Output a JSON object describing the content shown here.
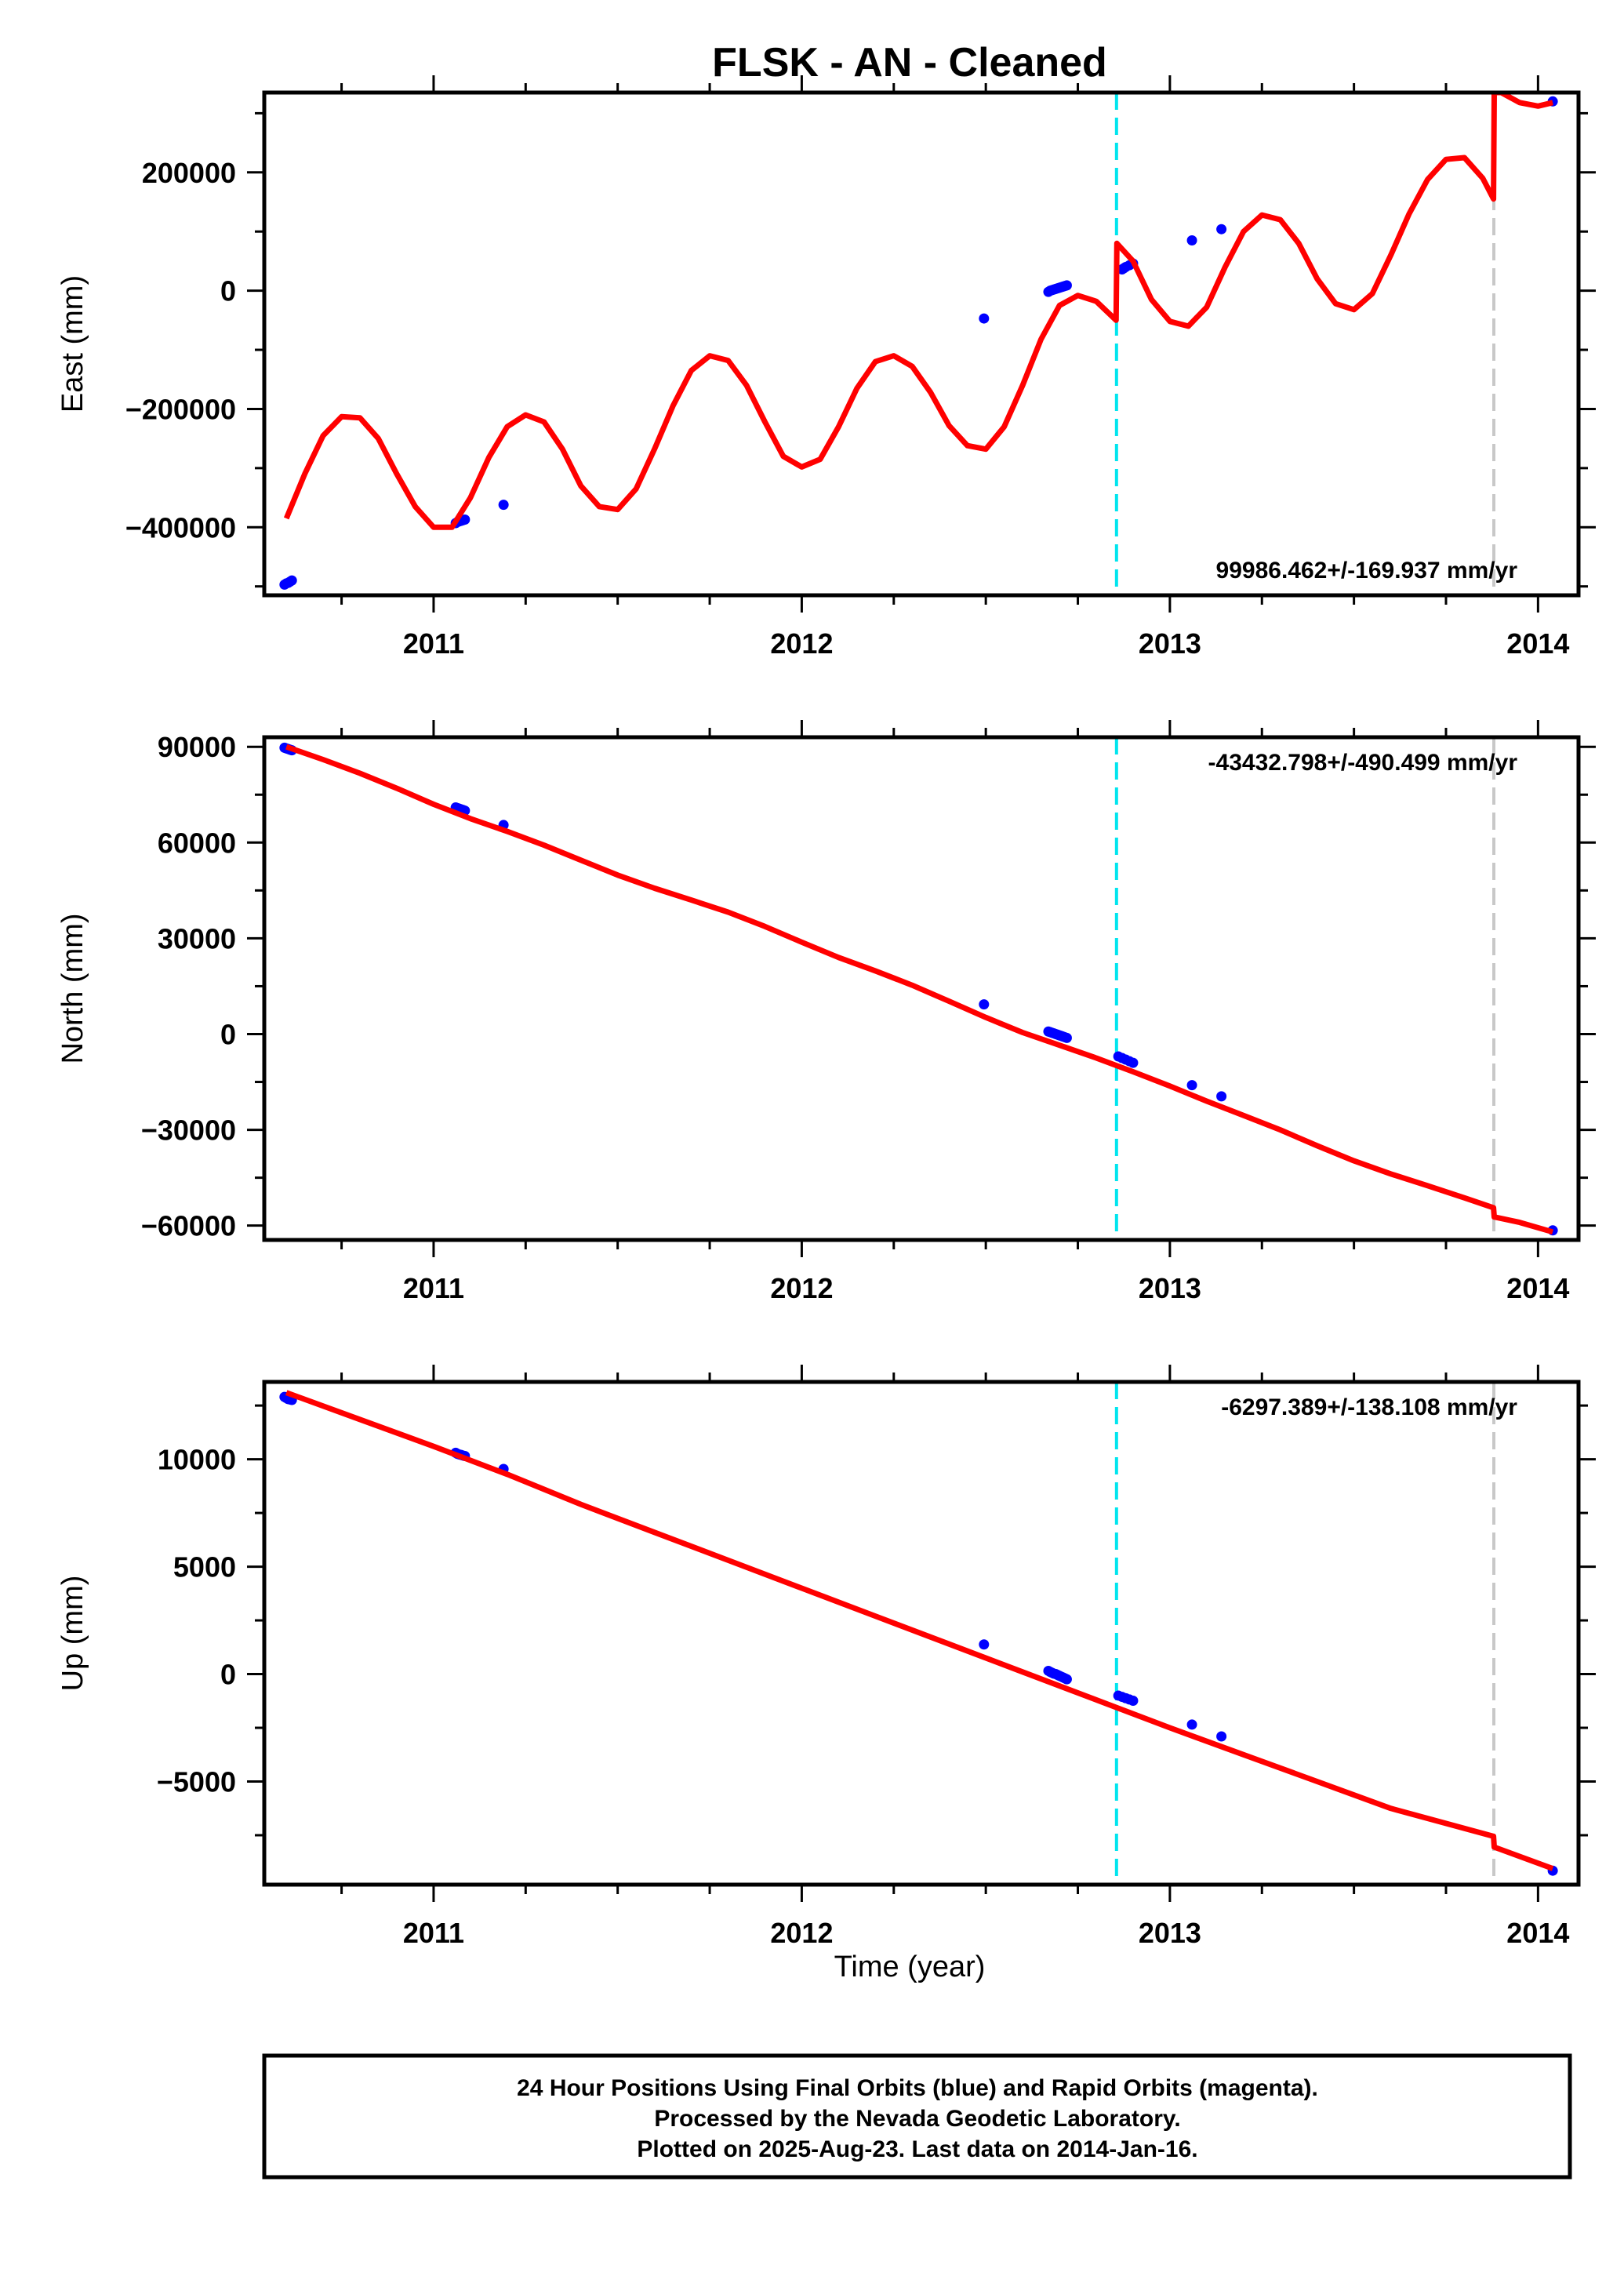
{
  "title": "FLSK  - AN - Cleaned",
  "xlabel": "Time (year)",
  "footer": [
    "24 Hour Positions Using Final Orbits (blue) and Rapid Orbits (magenta).",
    "Processed by the Nevada Geodetic Laboratory.",
    "Plotted on 2025-Aug-23. Last data on 2014-Jan-16."
  ],
  "colors": {
    "observations": "#0000ff",
    "model": "#ff0000",
    "equipment_change": "#00e5ee",
    "other_event": "#c8c8c8",
    "frame": "#000000"
  },
  "chart_data": [
    {
      "type": "scatter",
      "panel": "east",
      "ylabel": "East (mm)",
      "rate": "99986.462+/-169.937 mm/yr",
      "xlim": [
        2010.54,
        2014.11
      ],
      "ylim": [
        -515000,
        335000
      ],
      "xticks": [
        2011,
        2012,
        2013,
        2014
      ],
      "yticks": [
        -400000,
        -200000,
        0,
        200000
      ],
      "ytick_labels": [
        "−400000",
        "−200000",
        "0",
        "200000"
      ],
      "events": [
        {
          "x": 2012.855,
          "kind": "equipment_change"
        },
        {
          "x": 2013.88,
          "kind": "other_event"
        }
      ],
      "observations": {
        "x": [
          2010.595,
          2010.6,
          2010.605,
          2010.61,
          2010.615,
          2011.06,
          2011.065,
          2011.07,
          2011.075,
          2011.08,
          2011.085,
          2011.19,
          2012.495,
          2012.67,
          2012.675,
          2012.68,
          2012.685,
          2012.69,
          2012.695,
          2012.7,
          2012.705,
          2012.71,
          2012.715,
          2012.72,
          2012.87,
          2012.875,
          2012.88,
          2012.89,
          2012.9,
          2013.06,
          2013.14,
          2014.04
        ],
        "y": [
          -497000,
          -495000,
          -494000,
          -492000,
          -490000,
          -393000,
          -391000,
          -390000,
          -389000,
          -388000,
          -387000,
          -362000,
          -47000,
          -2000,
          0,
          1000,
          2000,
          3000,
          4000,
          5000,
          6000,
          7000,
          8000,
          9000,
          36000,
          38000,
          40000,
          43000,
          46000,
          85000,
          104000,
          320000
        ]
      },
      "model": {
        "x": [
          2010.6,
          2010.65,
          2010.7,
          2010.75,
          2010.8,
          2010.85,
          2010.9,
          2010.95,
          2011.0,
          2011.05,
          2011.1,
          2011.15,
          2011.2,
          2011.25,
          2011.3,
          2011.35,
          2011.4,
          2011.45,
          2011.5,
          2011.55,
          2011.6,
          2011.65,
          2011.7,
          2011.75,
          2011.8,
          2011.85,
          2011.9,
          2011.95,
          2012.0,
          2012.05,
          2012.1,
          2012.15,
          2012.2,
          2012.25,
          2012.3,
          2012.35,
          2012.4,
          2012.45,
          2012.5,
          2012.55,
          2012.6,
          2012.65,
          2012.7,
          2012.75,
          2012.8,
          2012.854,
          2012.856,
          2012.9,
          2012.95,
          2013.0,
          2013.05,
          2013.1,
          2013.15,
          2013.2,
          2013.25,
          2013.3,
          2013.35,
          2013.4,
          2013.45,
          2013.5,
          2013.55,
          2013.6,
          2013.65,
          2013.7,
          2013.75,
          2013.8,
          2013.85,
          2013.879,
          2013.881,
          2013.9,
          2013.95,
          2014.0,
          2014.04
        ],
        "y": [
          -385000,
          -310000,
          -245000,
          -213000,
          -215000,
          -250000,
          -310000,
          -365000,
          -400000,
          -400000,
          -350000,
          -282000,
          -230000,
          -210000,
          -222000,
          -268000,
          -330000,
          -365000,
          -370000,
          -335000,
          -268000,
          -195000,
          -135000,
          -110000,
          -118000,
          -160000,
          -222000,
          -280000,
          -298000,
          -285000,
          -230000,
          -165000,
          -120000,
          -110000,
          -128000,
          -172000,
          -228000,
          -262000,
          -268000,
          -230000,
          -160000,
          -82000,
          -25000,
          -8000,
          -18000,
          -50000,
          80000,
          50000,
          -15000,
          -52000,
          -60000,
          -28000,
          40000,
          100000,
          128000,
          120000,
          80000,
          20000,
          -22000,
          -32000,
          -5000,
          60000,
          130000,
          188000,
          222000,
          225000,
          190000,
          155000,
          335000,
          335000,
          318000,
          312000,
          318000
        ]
      }
    },
    {
      "type": "scatter",
      "panel": "north",
      "ylabel": "North (mm)",
      "rate": "-43432.798+/-490.499 mm/yr",
      "xlim": [
        2010.54,
        2014.11
      ],
      "ylim": [
        -64500,
        93000
      ],
      "xticks": [
        2011,
        2012,
        2013,
        2014
      ],
      "yticks": [
        -60000,
        -30000,
        0,
        30000,
        60000,
        90000
      ],
      "ytick_labels": [
        "−60000",
        "−30000",
        "0",
        "30000",
        "60000",
        "90000"
      ],
      "events": [
        {
          "x": 2012.855,
          "kind": "equipment_change"
        },
        {
          "x": 2013.88,
          "kind": "other_event"
        }
      ],
      "observations": {
        "x": [
          2010.595,
          2010.6,
          2010.605,
          2010.61,
          2010.615,
          2011.06,
          2011.065,
          2011.07,
          2011.075,
          2011.08,
          2011.085,
          2011.19,
          2012.495,
          2012.67,
          2012.675,
          2012.68,
          2012.685,
          2012.69,
          2012.695,
          2012.7,
          2012.705,
          2012.71,
          2012.715,
          2012.72,
          2012.86,
          2012.87,
          2012.88,
          2012.89,
          2012.9,
          2013.06,
          2013.14,
          2014.04
        ],
        "y": [
          89700,
          89500,
          89300,
          89100,
          88900,
          71000,
          70800,
          70600,
          70400,
          70200,
          70000,
          65500,
          9300,
          800,
          600,
          400,
          200,
          0,
          -200,
          -400,
          -600,
          -800,
          -1000,
          -1200,
          -7000,
          -7500,
          -8000,
          -8500,
          -9000,
          -16000,
          -19500,
          -61500
        ]
      },
      "model": {
        "x": [
          2010.6,
          2010.7,
          2010.8,
          2010.9,
          2011.0,
          2011.1,
          2011.2,
          2011.3,
          2011.4,
          2011.5,
          2011.6,
          2011.7,
          2011.8,
          2011.9,
          2012.0,
          2012.1,
          2012.2,
          2012.3,
          2012.4,
          2012.5,
          2012.6,
          2012.7,
          2012.8,
          2012.9,
          2013.0,
          2013.1,
          2013.2,
          2013.3,
          2013.4,
          2013.5,
          2013.6,
          2013.7,
          2013.8,
          2013.879,
          2013.881,
          2013.95,
          2014.04
        ],
        "y": [
          90000,
          86000,
          81700,
          77000,
          72000,
          67500,
          63500,
          59200,
          54500,
          49800,
          45700,
          42000,
          38200,
          33700,
          28800,
          24000,
          19800,
          15300,
          10300,
          5200,
          500,
          -3500,
          -7500,
          -11800,
          -16300,
          -21000,
          -25500,
          -30000,
          -35000,
          -39700,
          -43800,
          -47500,
          -51300,
          -54400,
          -57300,
          -59000,
          -62000
        ]
      }
    },
    {
      "type": "scatter",
      "panel": "up",
      "ylabel": "Up (mm)",
      "rate": "-6297.389+/-138.108 mm/yr",
      "xlim": [
        2010.54,
        2014.11
      ],
      "ylim": [
        -9800,
        13600
      ],
      "xticks": [
        2011,
        2012,
        2013,
        2014
      ],
      "yticks": [
        -5000,
        0,
        5000,
        10000
      ],
      "ytick_labels": [
        "−5000",
        "0",
        "5000",
        "10000"
      ],
      "events": [
        {
          "x": 2012.855,
          "kind": "equipment_change"
        },
        {
          "x": 2013.88,
          "kind": "other_event"
        }
      ],
      "observations": {
        "x": [
          2010.595,
          2010.6,
          2010.605,
          2010.61,
          2010.615,
          2011.06,
          2011.065,
          2011.07,
          2011.075,
          2011.08,
          2011.085,
          2011.19,
          2012.495,
          2012.67,
          2012.675,
          2012.68,
          2012.685,
          2012.69,
          2012.695,
          2012.7,
          2012.705,
          2012.71,
          2012.715,
          2012.72,
          2012.86,
          2012.87,
          2012.88,
          2012.89,
          2012.9,
          2013.06,
          2013.14,
          2014.04
        ],
        "y": [
          12900,
          12850,
          12800,
          12780,
          12760,
          10300,
          10250,
          10220,
          10200,
          10170,
          10150,
          9550,
          1380,
          150,
          100,
          60,
          20,
          0,
          -40,
          -80,
          -120,
          -160,
          -200,
          -240,
          -1000,
          -1060,
          -1120,
          -1180,
          -1240,
          -2350,
          -2900,
          -9150
        ]
      },
      "model": {
        "x": [
          2010.6,
          2010.8,
          2011.0,
          2011.2,
          2011.4,
          2011.6,
          2011.8,
          2012.0,
          2012.2,
          2012.4,
          2012.6,
          2012.8,
          2013.0,
          2013.2,
          2013.4,
          2013.6,
          2013.879,
          2013.881,
          2014.04
        ],
        "y": [
          13100,
          11850,
          10600,
          9300,
          7900,
          6600,
          5300,
          4000,
          2700,
          1400,
          100,
          -1200,
          -2500,
          -3750,
          -5000,
          -6250,
          -7550,
          -8050,
          -9050
        ]
      }
    }
  ]
}
